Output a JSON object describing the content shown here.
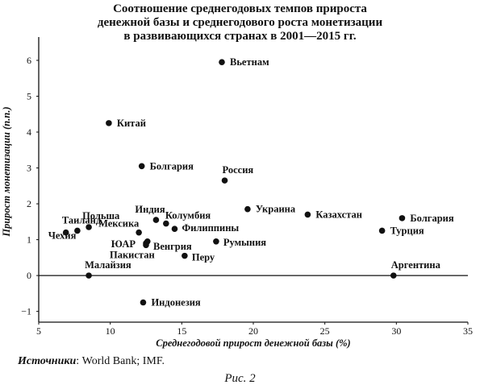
{
  "title_lines": [
    "Соотношение среднегодовых темпов прироста",
    "денежной базы и среднегодового роста монетизации",
    "в развивающихся странах в 2001—2015 гг."
  ],
  "source_label": "Источники",
  "source_text": ": World Bank; IMF.",
  "caption": "Рис. 2",
  "chart_data": {
    "type": "scatter",
    "title": "Соотношение среднегодовых темпов прироста денежной базы и среднегодового роста монетизации в развивающихся странах в 2001—2015 гг.",
    "xlabel": "Среднегодовой прирост денежной базы (%)",
    "ylabel": "Прирост монетизации (п.п.)",
    "xlim": [
      5,
      35
    ],
    "ylim": [
      -1,
      6
    ],
    "xticks": [
      5,
      10,
      15,
      20,
      25,
      30,
      35
    ],
    "yticks": [
      -1,
      0,
      1,
      2,
      3,
      4,
      5,
      6
    ],
    "grid": false,
    "points": [
      {
        "label": "Вьетнам",
        "x": 17.8,
        "y": 5.95
      },
      {
        "label": "Китай",
        "x": 9.9,
        "y": 4.25
      },
      {
        "label": "Болгария",
        "x": 12.2,
        "y": 3.05
      },
      {
        "label": "Россия",
        "x": 18.0,
        "y": 2.65
      },
      {
        "label": "Украина",
        "x": 19.6,
        "y": 1.85
      },
      {
        "label": "Казахстан",
        "x": 23.8,
        "y": 1.7
      },
      {
        "label": "Болгария",
        "x": 30.4,
        "y": 1.6
      },
      {
        "label": "Турция",
        "x": 29.0,
        "y": 1.25
      },
      {
        "label": "Аргентина",
        "x": 29.8,
        "y": 0.0
      },
      {
        "label": "Таиланд",
        "x": 7.7,
        "y": 1.25
      },
      {
        "label": "Польша",
        "x": 8.5,
        "y": 1.35
      },
      {
        "label": "Чехия",
        "x": 6.9,
        "y": 1.2
      },
      {
        "label": "Индия",
        "x": 13.2,
        "y": 1.55
      },
      {
        "label": "Мексика",
        "x": 12.0,
        "y": 1.2
      },
      {
        "label": "Колумбия",
        "x": 13.9,
        "y": 1.45
      },
      {
        "label": "Филиппины",
        "x": 14.5,
        "y": 1.3
      },
      {
        "label": "ЮАР",
        "x": 12.6,
        "y": 0.95
      },
      {
        "label": "Венгрия",
        "x": 12.5,
        "y": 0.9
      },
      {
        "label": "Румыния",
        "x": 17.4,
        "y": 0.95
      },
      {
        "label": "Пакистан",
        "x": 12.5,
        "y": 0.85
      },
      {
        "label": "Перу",
        "x": 15.2,
        "y": 0.55
      },
      {
        "label": "Малайзия",
        "x": 8.5,
        "y": 0.0
      },
      {
        "label": "Индонезия",
        "x": 12.3,
        "y": -0.75
      }
    ]
  }
}
